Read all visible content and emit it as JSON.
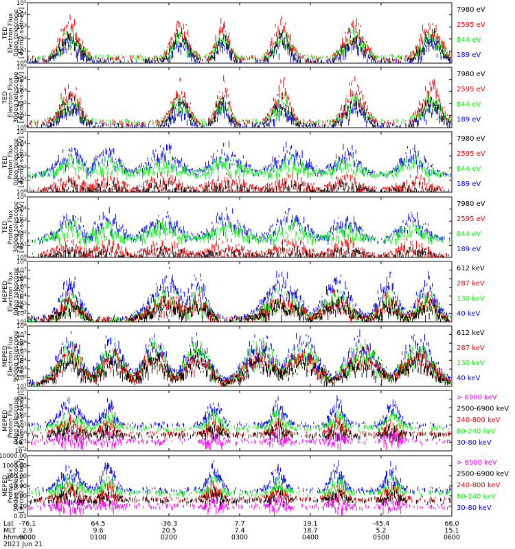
{
  "date_label": "2021 Jun 21",
  "colors": {
    "blue": "#0000ff",
    "red": "#ff0000",
    "green": "#00ff00",
    "black": "#000000",
    "magenta": "#ff00ff"
  },
  "chart_data": [
    {
      "type": "scatter",
      "ylabel": [
        "TED",
        "Electron Flux",
        "0deg telescope",
        "[#/cm2-s-str-eV]"
      ],
      "y_scale": "log",
      "ylim": [
        1,
        100000
      ],
      "yticks": [
        "10^0",
        "10^1",
        "10^2",
        "10^3",
        "10^4",
        "10^5"
      ],
      "series": [
        {
          "name": "7980 eV",
          "color": "#000000"
        },
        {
          "name": "2595 eV",
          "color": "#ff0000"
        },
        {
          "name": "844 eV",
          "color": "#00ff00"
        },
        {
          "name": "189 eV",
          "color": "#0000ff"
        }
      ]
    },
    {
      "type": "scatter",
      "ylabel": [
        "TED",
        "Electron Flux",
        "30deg telescope",
        "[#/cm2-s-str-eV]"
      ],
      "y_scale": "log",
      "ylim": [
        1,
        100000
      ],
      "yticks": [
        "10^0",
        "10^1",
        "10^2",
        "10^3",
        "10^4",
        "10^5"
      ],
      "series": [
        {
          "name": "7980 eV",
          "color": "#000000"
        },
        {
          "name": "2595 eV",
          "color": "#ff0000"
        },
        {
          "name": "844 eV",
          "color": "#00ff00"
        },
        {
          "name": "189 eV",
          "color": "#0000ff"
        }
      ]
    },
    {
      "type": "scatter",
      "ylabel": [
        "TED",
        "Proton Flux",
        "0deg telescope",
        "[#/cm2-s-str-eV]"
      ],
      "y_scale": "log",
      "ylim": [
        1,
        100000
      ],
      "yticks": [
        "10^0",
        "10^1",
        "10^2",
        "10^3",
        "10^4",
        "10^5"
      ],
      "series": [
        {
          "name": "7980 eV",
          "color": "#000000"
        },
        {
          "name": "2595 eV",
          "color": "#ff0000"
        },
        {
          "name": "844 eV",
          "color": "#00ff00"
        },
        {
          "name": "189 eV",
          "color": "#0000ff"
        }
      ]
    },
    {
      "type": "scatter",
      "ylabel": [
        "TED",
        "Proton Flux",
        "30deg telescope",
        "[#/cm2-s-str-eV]"
      ],
      "y_scale": "log",
      "ylim": [
        1,
        100000
      ],
      "yticks": [
        "10^0",
        "10^1",
        "10^2",
        "10^3",
        "10^4",
        "10^5"
      ],
      "series": [
        {
          "name": "7980 eV",
          "color": "#000000"
        },
        {
          "name": "2595 eV",
          "color": "#ff0000"
        },
        {
          "name": "844 eV",
          "color": "#00ff00"
        },
        {
          "name": "189 eV",
          "color": "#0000ff"
        }
      ]
    },
    {
      "type": "scatter",
      "ylabel": [
        "MEPED",
        "Electron Flux",
        "0deg telescope",
        "[#/cm2-s-str]"
      ],
      "y_scale": "log",
      "ylim": [
        10,
        100000000
      ],
      "yticks": [
        "10^1",
        "10^2",
        "10^3",
        "10^4",
        "10^5",
        "10^6",
        "10^7",
        "10^8"
      ],
      "series": [
        {
          "name": "612 keV",
          "color": "#000000"
        },
        {
          "name": "287 keV",
          "color": "#ff0000"
        },
        {
          "name": "130 keV",
          "color": "#00ff00"
        },
        {
          "name": "40 keV",
          "color": "#0000ff"
        }
      ]
    },
    {
      "type": "scatter",
      "ylabel": [
        "MEPED",
        "Electron Flux",
        "90deg telescope",
        "[#/cm2-s-str]"
      ],
      "y_scale": "log",
      "ylim": [
        10,
        100000000
      ],
      "yticks": [
        "10^1",
        "10^2",
        "10^3",
        "10^4",
        "10^5",
        "10^6",
        "10^7",
        "10^8"
      ],
      "series": [
        {
          "name": "612 keV",
          "color": "#000000"
        },
        {
          "name": "287 keV",
          "color": "#ff0000"
        },
        {
          "name": "130 keV",
          "color": "#00ff00"
        },
        {
          "name": "40 keV",
          "color": "#0000ff"
        }
      ]
    },
    {
      "type": "scatter",
      "ylabel": [
        "MEPED",
        "Proton Flux",
        "0deg telescope",
        "[#/cm2-s-str-keV]"
      ],
      "y_scale": "log",
      "ylim": [
        0.01,
        100000
      ],
      "yticks": [
        "10^-2",
        "10^-1",
        "10^0",
        "10^1",
        "10^2",
        "10^3",
        "10^4",
        "10^5"
      ],
      "series": [
        {
          "name": "> 6900 keV",
          "color": "#ff00ff"
        },
        {
          "name": "2500-6900 keV",
          "color": "#000000"
        },
        {
          "name": "240-800 keV",
          "color": "#ff0000"
        },
        {
          "name": "80-240 keV",
          "color": "#00ff00"
        },
        {
          "name": "30-80 keV",
          "color": "#0000ff"
        }
      ]
    },
    {
      "type": "scatter",
      "ylabel": [
        "MEPED",
        "Proton Flux",
        "90deg telescope",
        "[#/cm2-s-str-keV]"
      ],
      "y_scale": "log",
      "ylim": [
        0.01,
        10000
      ],
      "yticks": [
        "0.01",
        "0.10",
        "1.00",
        "10.00",
        "100.00",
        "1000.00",
        "10000.00"
      ],
      "series": [
        {
          "name": "> 6900 keV",
          "color": "#ff00ff"
        },
        {
          "name": "2500-6900 keV",
          "color": "#000000"
        },
        {
          "name": "240-800 keV",
          "color": "#ff0000"
        },
        {
          "name": "80-240 keV",
          "color": "#00ff00"
        },
        {
          "name": "30-80 keV",
          "color": "#0000ff"
        }
      ]
    }
  ],
  "x_axis": {
    "row_labels": [
      "Lat",
      "MLT",
      "hhmm"
    ],
    "ticks": [
      {
        "lat": "-76.1",
        "mlt": "2.9",
        "hhmm": "0000"
      },
      {
        "lat": "64.5",
        "mlt": "9.6",
        "hhmm": "0100"
      },
      {
        "lat": "-36.3",
        "mlt": "20.5",
        "hhmm": "0200"
      },
      {
        "lat": "7.7",
        "mlt": "7.4",
        "hhmm": "0300"
      },
      {
        "lat": "19.1",
        "mlt": "18.7",
        "hhmm": "0400"
      },
      {
        "lat": "-45.4",
        "mlt": "5.2",
        "hhmm": "0500"
      },
      {
        "lat": "66.0",
        "mlt": "15.1",
        "hhmm": "0600"
      }
    ]
  }
}
